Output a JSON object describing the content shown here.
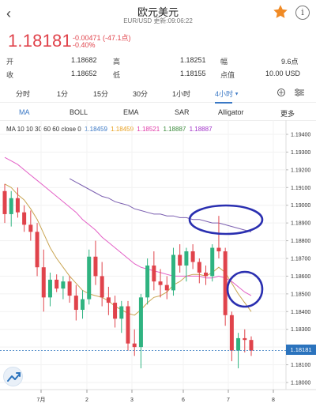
{
  "header": {
    "title": "欧元美元",
    "subtitle": "EUR/USD 更新:09:06:22",
    "back_glyph": "‹"
  },
  "quote": {
    "price": "1.18181",
    "change": "-0.00471 (-47.1点)",
    "change_pct": "-0.40%",
    "open_label": "开",
    "open": "1.18682",
    "high_label": "高",
    "high": "1.18251",
    "range_label": "幅",
    "range": "9.6点",
    "close_label": "收",
    "close": "1.18652",
    "low_label": "低",
    "low": "1.18155",
    "spread_label": "点值",
    "spread": "10.00 USD"
  },
  "timeframes": [
    "分时",
    "1分",
    "15分",
    "30分",
    "1小时",
    "4小时",
    "更多"
  ],
  "active_timeframe": "4小时",
  "indicators": [
    "MA",
    "BOLL",
    "EMA",
    "SAR",
    "Alligator",
    "更多"
  ],
  "active_indicator": "MA",
  "ma_legend": {
    "prefix": "MA  10 10 30 60 60 close 0",
    "values": [
      "1.18459",
      "1.18459",
      "1.18521",
      "1.18887",
      "1.18887"
    ],
    "colors": [
      "#3a78c5",
      "#e8a020",
      "#e03aa8",
      "#3a8a3a",
      "#a030c8"
    ]
  },
  "colors": {
    "up": "#2fb380",
    "down": "#e0434b",
    "accent": "#3a78c5",
    "current_price": "#2b73bd",
    "annotation": "#2a2fb0"
  },
  "current_price_label": "1.18181",
  "chart_data": {
    "type": "candlestick",
    "y_ticks": [
      "1.19400",
      "1.19300",
      "1.19200",
      "1.19100",
      "1.19000",
      "1.18900",
      "1.18800",
      "1.18700",
      "1.18600",
      "1.18500",
      "1.18400",
      "1.18300",
      "1.18200",
      "1.18100",
      "1.18000"
    ],
    "ylim": [
      1.1795,
      1.1945
    ],
    "x_ticks": [
      "7月",
      "2",
      "3",
      "6",
      "7",
      "8"
    ],
    "candles": [
      [
        1.1908,
        1.1912,
        1.189,
        1.1895
      ],
      [
        1.1895,
        1.1908,
        1.1888,
        1.1904
      ],
      [
        1.1904,
        1.191,
        1.1893,
        1.1896
      ],
      [
        1.1896,
        1.19,
        1.1885,
        1.1889
      ],
      [
        1.1889,
        1.1897,
        1.188,
        1.1885
      ],
      [
        1.1885,
        1.189,
        1.186,
        1.1865
      ],
      [
        1.1865,
        1.1875,
        1.184,
        1.1848
      ],
      [
        1.1848,
        1.1862,
        1.1843,
        1.1858
      ],
      [
        1.1858,
        1.1861,
        1.1851,
        1.1853
      ],
      [
        1.1853,
        1.186,
        1.1847,
        1.1857
      ],
      [
        1.1857,
        1.186,
        1.1845,
        1.1849
      ],
      [
        1.1849,
        1.1855,
        1.1835,
        1.1841
      ],
      [
        1.1841,
        1.1852,
        1.1836,
        1.1847
      ],
      [
        1.1847,
        1.1875,
        1.1844,
        1.1871
      ],
      [
        1.1871,
        1.188,
        1.1855,
        1.186
      ],
      [
        1.186,
        1.1868,
        1.1843,
        1.1848
      ],
      [
        1.1848,
        1.1854,
        1.1838,
        1.1845
      ],
      [
        1.1845,
        1.1849,
        1.1831,
        1.1836
      ],
      [
        1.1836,
        1.1846,
        1.1828,
        1.1843
      ],
      [
        1.1843,
        1.1846,
        1.1818,
        1.1822
      ],
      [
        1.1822,
        1.183,
        1.1815,
        1.182
      ],
      [
        1.182,
        1.185,
        1.1808,
        1.1848
      ],
      [
        1.1848,
        1.187,
        1.1844,
        1.1866
      ],
      [
        1.1866,
        1.1874,
        1.1852,
        1.1857
      ],
      [
        1.1857,
        1.1864,
        1.1848,
        1.1855
      ],
      [
        1.1855,
        1.186,
        1.1847,
        1.1852
      ],
      [
        1.1852,
        1.1876,
        1.1849,
        1.1872
      ],
      [
        1.1872,
        1.1878,
        1.1862,
        1.1866
      ],
      [
        1.1866,
        1.1876,
        1.1857,
        1.1874
      ],
      [
        1.1874,
        1.1878,
        1.1864,
        1.1868
      ],
      [
        1.1868,
        1.187,
        1.1856,
        1.1862
      ],
      [
        1.1862,
        1.1866,
        1.1855,
        1.186
      ],
      [
        1.186,
        1.1878,
        1.1857,
        1.1876
      ],
      [
        1.1876,
        1.1894,
        1.187,
        1.1874
      ],
      [
        1.1874,
        1.1876,
        1.1832,
        1.1838
      ],
      [
        1.1838,
        1.184,
        1.1812,
        1.1818
      ],
      [
        1.1818,
        1.1828,
        1.1808,
        1.1825
      ],
      [
        1.1825,
        1.183,
        1.1817,
        1.1824
      ],
      [
        1.1824,
        1.1826,
        1.1815,
        1.1818
      ]
    ],
    "ma_series": [
      {
        "color": "#c9a552",
        "values": [
          1.1912,
          1.191,
          1.1906,
          1.1903,
          1.1898,
          1.1892,
          1.1884,
          1.1876,
          1.187,
          1.1865,
          1.186,
          1.1856,
          1.1852,
          1.185,
          1.1849,
          1.1848,
          1.1846,
          1.1843,
          1.1841,
          1.1839,
          1.1838,
          1.1841,
          1.1845,
          1.1848,
          1.1849,
          1.1851,
          1.1855,
          1.1857,
          1.186,
          1.1861,
          1.1861,
          1.186,
          1.1862,
          1.1865,
          1.1862,
          1.1856,
          1.185,
          1.1845,
          1.184
        ]
      },
      {
        "color": "#e35fc6",
        "values": [
          1.1927,
          1.1925,
          1.1923,
          1.192,
          1.1917,
          1.1914,
          1.1911,
          1.1908,
          1.1905,
          1.1902,
          1.1899,
          1.1896,
          1.1892,
          1.1889,
          1.1886,
          1.1882,
          1.1879,
          1.1876,
          1.1873,
          1.187,
          1.1867,
          1.1865,
          1.1864,
          1.1863,
          1.1862,
          1.1861,
          1.186,
          1.186,
          1.186,
          1.186,
          1.186,
          1.1859,
          1.1859,
          1.186,
          1.1859,
          1.1857,
          1.1854,
          1.1851,
          1.1849
        ]
      },
      {
        "color": "#7b5fb0",
        "values": [
          null,
          null,
          null,
          null,
          null,
          null,
          null,
          null,
          null,
          null,
          1.1915,
          1.1913,
          1.1911,
          1.1909,
          1.1907,
          1.1905,
          1.1904,
          1.1902,
          1.1901,
          1.19,
          1.1898,
          1.1897,
          1.1896,
          1.1895,
          1.1895,
          1.1894,
          1.1894,
          1.1893,
          1.1893,
          1.1892,
          1.1892,
          1.1891,
          1.189,
          1.189,
          1.1889,
          1.1888,
          1.1887,
          1.1886,
          1.1885
        ]
      }
    ],
    "current_price": 1.18181
  }
}
